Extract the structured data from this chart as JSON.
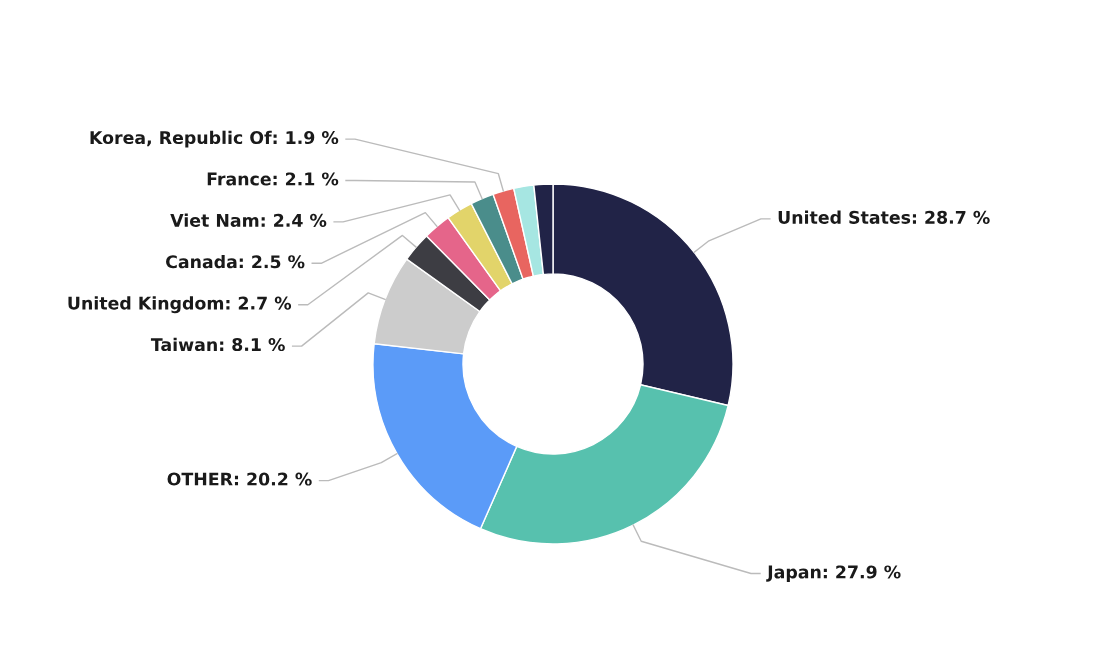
{
  "chart_data": {
    "type": "donut",
    "categories": [
      "United States",
      "Japan",
      "OTHER",
      "Taiwan",
      "United Kingdom",
      "Canada",
      "Viet Nam",
      "France",
      "Korea, Republic Of",
      null,
      null
    ],
    "values": [
      28.7,
      27.9,
      20.2,
      8.1,
      2.7,
      2.5,
      2.4,
      2.1,
      1.9,
      1.8,
      1.7
    ],
    "value_labels": [
      "28.7 %",
      "27.9 %",
      "20.2 %",
      "8.1 %",
      "2.7 %",
      "2.5 %",
      "2.4 %",
      "2.1 %",
      "1.9 %",
      null,
      null
    ],
    "colors": [
      "#212347",
      "#57c1ae",
      "#5b9bf8",
      "#cccccc",
      "#3d3d43",
      "#e5658a",
      "#e2d46a",
      "#4a8d8b",
      "#e86560",
      "#a6e6e2",
      "#212347"
    ]
  }
}
